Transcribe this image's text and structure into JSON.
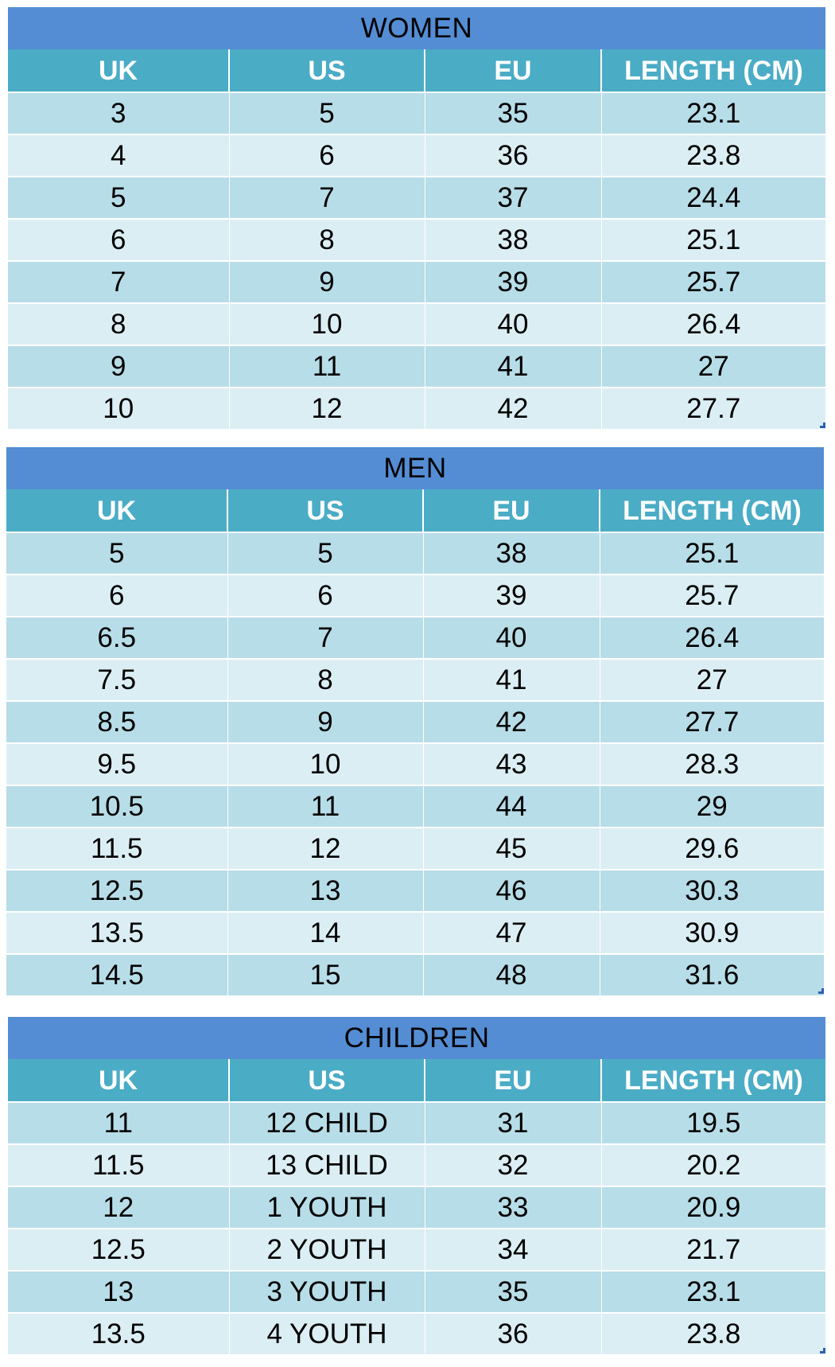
{
  "tables": [
    {
      "title": "WOMEN",
      "headers": [
        "UK",
        "US",
        "EU",
        "LENGTH (CM)"
      ],
      "rows": [
        [
          "3",
          "5",
          "35",
          "23.1"
        ],
        [
          "4",
          "6",
          "36",
          "23.8"
        ],
        [
          "5",
          "7",
          "37",
          "24.4"
        ],
        [
          "6",
          "8",
          "38",
          "25.1"
        ],
        [
          "7",
          "9",
          "39",
          "25.7"
        ],
        [
          "8",
          "10",
          "40",
          "26.4"
        ],
        [
          "9",
          "11",
          "41",
          "27"
        ],
        [
          "10",
          "12",
          "42",
          "27.7"
        ]
      ]
    },
    {
      "title": "MEN",
      "headers": [
        "UK",
        "US",
        "EU",
        "LENGTH (CM)"
      ],
      "rows": [
        [
          "5",
          "5",
          "38",
          "25.1"
        ],
        [
          "6",
          "6",
          "39",
          "25.7"
        ],
        [
          "6.5",
          "7",
          "40",
          "26.4"
        ],
        [
          "7.5",
          "8",
          "41",
          "27"
        ],
        [
          "8.5",
          "9",
          "42",
          "27.7"
        ],
        [
          "9.5",
          "10",
          "43",
          "28.3"
        ],
        [
          "10.5",
          "11",
          "44",
          "29"
        ],
        [
          "11.5",
          "12",
          "45",
          "29.6"
        ],
        [
          "12.5",
          "13",
          "46",
          "30.3"
        ],
        [
          "13.5",
          "14",
          "47",
          "30.9"
        ],
        [
          "14.5",
          "15",
          "48",
          "31.6"
        ]
      ]
    },
    {
      "title": "CHILDREN",
      "headers": [
        "UK",
        "US",
        "EU",
        "LENGTH (CM)"
      ],
      "rows": [
        [
          "11",
          "12 CHILD",
          "31",
          "19.5"
        ],
        [
          "11.5",
          "13 CHILD",
          "32",
          "20.2"
        ],
        [
          "12",
          "1 YOUTH",
          "33",
          "20.9"
        ],
        [
          "12.5",
          "2 YOUTH",
          "34",
          "21.7"
        ],
        [
          "13",
          "3 YOUTH",
          "35",
          "23.1"
        ],
        [
          "13.5",
          "4 YOUTH",
          "36",
          "23.8"
        ]
      ]
    }
  ],
  "colors": {
    "title_band": "#548dd4",
    "header_band": "#4bacc6",
    "row_dark": "#b7dde8",
    "row_light": "#dbeef3"
  }
}
